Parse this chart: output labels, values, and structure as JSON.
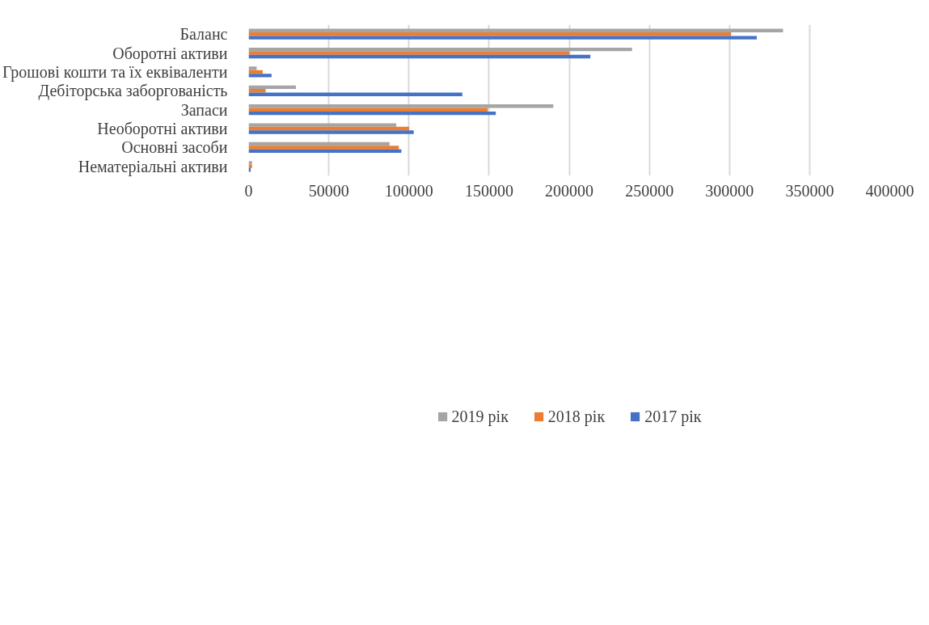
{
  "chart_data": {
    "type": "bar",
    "orientation": "horizontal",
    "categories": [
      "Баланс",
      "Оборотні активи",
      "Грошові кошти та їх еквіваленти",
      "Дебіторська заборгованість",
      "Запаси",
      "Необоротні активи",
      "Основні засоби",
      "Нематеріальні активи"
    ],
    "series": [
      {
        "name": "2019 рік",
        "color": "#a5a5a5",
        "values": [
          333400,
          239200,
          5000,
          29500,
          190100,
          92100,
          87900,
          2100
        ]
      },
      {
        "name": "2018 рік",
        "color": "#ed7d31",
        "values": [
          301000,
          200200,
          8800,
          10600,
          149200,
          100100,
          93700,
          2100
        ]
      },
      {
        "name": "2017 рік",
        "color": "#4472c4",
        "values": [
          317000,
          213200,
          14300,
          133300,
          154200,
          103000,
          95300,
          1300
        ]
      }
    ],
    "xlim": [
      0,
      400000
    ],
    "xticks": [
      0,
      50000,
      100000,
      150000,
      200000,
      250000,
      300000,
      350000,
      400000
    ],
    "grid": "x",
    "legend": "bottom"
  }
}
